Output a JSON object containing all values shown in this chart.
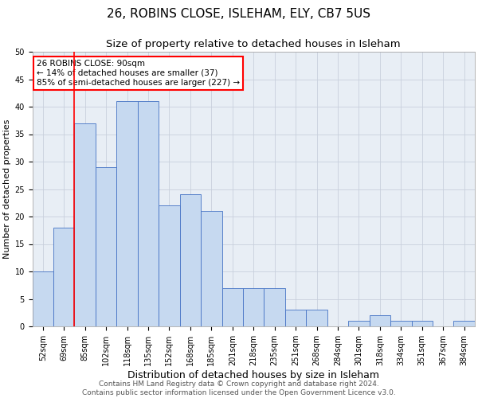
{
  "title1": "26, ROBINS CLOSE, ISLEHAM, ELY, CB7 5US",
  "title2": "Size of property relative to detached houses in Isleham",
  "xlabel": "Distribution of detached houses by size in Isleham",
  "ylabel": "Number of detached properties",
  "categories": [
    "52sqm",
    "69sqm",
    "85sqm",
    "102sqm",
    "118sqm",
    "135sqm",
    "152sqm",
    "168sqm",
    "185sqm",
    "201sqm",
    "218sqm",
    "235sqm",
    "251sqm",
    "268sqm",
    "284sqm",
    "301sqm",
    "318sqm",
    "334sqm",
    "351sqm",
    "367sqm",
    "384sqm"
  ],
  "values": [
    10,
    18,
    37,
    29,
    41,
    41,
    22,
    24,
    21,
    7,
    7,
    7,
    3,
    3,
    0,
    1,
    2,
    1,
    1,
    0,
    1
  ],
  "bar_color": "#c6d9f0",
  "bar_edge_color": "#4472c4",
  "red_line_index": 2,
  "annotation_text": "26 ROBINS CLOSE: 90sqm\n← 14% of detached houses are smaller (37)\n85% of semi-detached houses are larger (227) →",
  "annotation_box_color": "white",
  "annotation_box_edge": "red",
  "footer1": "Contains HM Land Registry data © Crown copyright and database right 2024.",
  "footer2": "Contains public sector information licensed under the Open Government Licence v3.0.",
  "ylim": [
    0,
    50
  ],
  "yticks": [
    0,
    5,
    10,
    15,
    20,
    25,
    30,
    35,
    40,
    45,
    50
  ],
  "grid_color": "#c8d0dc",
  "bg_color": "#e8eef5",
  "title1_fontsize": 11,
  "title2_fontsize": 9.5,
  "xlabel_fontsize": 9,
  "ylabel_fontsize": 8,
  "tick_fontsize": 7,
  "annot_fontsize": 7.5,
  "footer_fontsize": 6.5
}
